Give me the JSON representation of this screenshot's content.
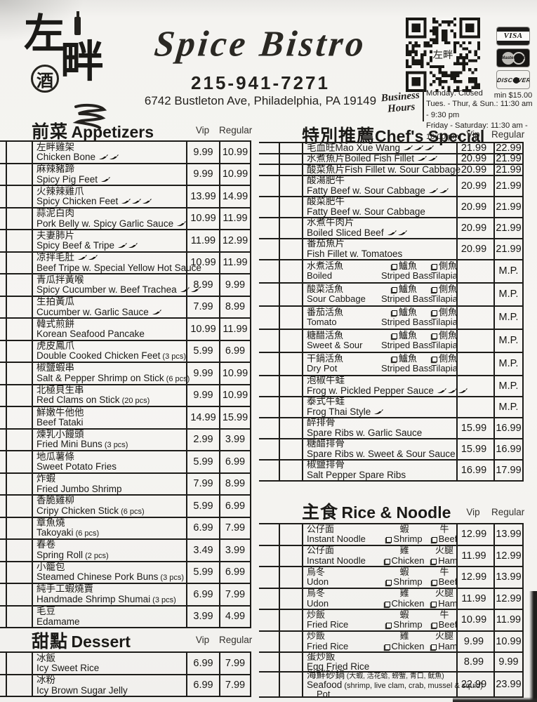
{
  "header": {
    "logo_chars": [
      "左",
      "畔"
    ],
    "logo_seal": "酒",
    "title": "Spice Bistro",
    "phone": "215-941-7271",
    "address": "6742 Bustleton Ave, Philadelphia, PA 19149",
    "qr_center_label": "左畔",
    "cards": [
      "VISA",
      "MasterCard",
      "DISCOVER"
    ],
    "card_minimum": "min $15.00",
    "hours_label": "Business Hours",
    "hours": [
      "Monday: Closed",
      "Tues. - Thur, & Sun.: 11:30 am - 9:30 pm",
      "Friday - Saturday: 11:30 am - 10:00 pm"
    ]
  },
  "columns": {
    "vip": "Vip",
    "regular": "Regular"
  },
  "colors": {
    "ink": "#1b1a17",
    "paper": "#f5f4f1",
    "border": "#1d1c19"
  },
  "sections": [
    {
      "id": "appetizers",
      "title_zh": "前菜",
      "title_en": "Appetizers",
      "items": [
        {
          "type": "d",
          "zh": "左畔雞架",
          "en": "Chicken Bone",
          "spice": 2,
          "vip": "9.99",
          "reg": "10.99"
        },
        {
          "type": "d",
          "zh": "麻辣豬蹄",
          "en": "Spicy Pig Feet",
          "spice": 1,
          "vip": "9.99",
          "reg": "10.99"
        },
        {
          "type": "d",
          "zh": "火辣辣雞爪",
          "en": "Spicy Chicken Feet",
          "spice": 3,
          "vip": "13.99",
          "reg": "14.99"
        },
        {
          "type": "d",
          "zh": "蒜泥白肉",
          "en": "Pork Belly w. Spicy Garlic Sauce",
          "spice": 1,
          "vip": "10.99",
          "reg": "11.99"
        },
        {
          "type": "d",
          "zh": "夫妻肺片",
          "en": "Spicy Beef & Tripe",
          "spice": 2,
          "vip": "11.99",
          "reg": "12.99"
        },
        {
          "type": "d",
          "zh": "凉拌毛肚",
          "spice_zh": 2,
          "en": "Beef Tripe w. Special Yellow Hot Sauce",
          "vip": "10.99",
          "reg": "11.99"
        },
        {
          "type": "d",
          "zh": "青瓜拌黃喉",
          "en": "Spicy Cucumber w. Beef Trachea",
          "spice": 2,
          "vip": "8.99",
          "reg": "9.99"
        },
        {
          "type": "d",
          "zh": "生拍黃瓜",
          "en": "Cucumber w. Garlic Sauce",
          "spice": 1,
          "vip": "7.99",
          "reg": "8.99"
        },
        {
          "type": "d",
          "zh": "韓式煎餅",
          "en": "Korean Seafood Pancake",
          "vip": "10.99",
          "reg": "11.99"
        },
        {
          "type": "d",
          "zh": "虎皮鳳爪",
          "en": "Double Cooked Chicken Feet",
          "note": "(3 pcs)",
          "vip": "5.99",
          "reg": "6.99"
        },
        {
          "type": "d",
          "zh": "椒鹽蝦串",
          "en": "Salt & Pepper Shrimp on Stick",
          "note": "(6 pcs)",
          "vip": "9.99",
          "reg": "10.99"
        },
        {
          "type": "d",
          "zh": "北極貝生串",
          "en": "Red Clams on Stick",
          "note": "(20 pcs)",
          "vip": "9.99",
          "reg": "10.99"
        },
        {
          "type": "d",
          "zh": "鮮嫩牛他他",
          "en": "Beef Tataki",
          "vip": "14.99",
          "reg": "15.99"
        },
        {
          "type": "d",
          "zh": "煉乳小饅頭",
          "en": "Fried Mini Buns",
          "note": "(3 pcs)",
          "vip": "2.99",
          "reg": "3.99"
        },
        {
          "type": "d",
          "zh": "地瓜薯條",
          "en": "Sweet Potato Fries",
          "vip": "5.99",
          "reg": "6.99"
        },
        {
          "type": "d",
          "zh": "炸蝦",
          "en": "Fried Jumbo Shrimp",
          "vip": "7.99",
          "reg": "8.99"
        },
        {
          "type": "d",
          "zh": "香脆雞柳",
          "en": "Cripy Chicken Stick",
          "note": "(6 pcs)",
          "vip": "5.99",
          "reg": "6.99"
        },
        {
          "type": "d",
          "zh": "章魚燒",
          "en": "Takoyaki",
          "note": "(6 pcs)",
          "vip": "6.99",
          "reg": "7.99"
        },
        {
          "type": "d",
          "zh": "春卷",
          "en": "Spring Roll",
          "note": "(2 pcs)",
          "vip": "3.49",
          "reg": "3.99"
        },
        {
          "type": "d",
          "zh": "小籠包",
          "en": "Steamed Chinese Pork Buns",
          "note": "(3 pcs)",
          "vip": "5.99",
          "reg": "6.99"
        },
        {
          "type": "d",
          "zh": "純手工蝦燒賣",
          "en": "Handmade Shrimp Shumai",
          "note": "(3 pcs)",
          "vip": "6.99",
          "reg": "7.99"
        },
        {
          "type": "d",
          "zh": "毛豆",
          "en": "Edamame",
          "vip": "3.99",
          "reg": "4.99"
        }
      ]
    },
    {
      "id": "dessert",
      "title_zh": "甜點",
      "title_en": "Dessert",
      "items": [
        {
          "type": "d",
          "zh": "冰飯",
          "en": "Icy Sweet Rice",
          "vip": "6.99",
          "reg": "7.99"
        },
        {
          "type": "d",
          "zh": "冰粉",
          "en": "Icy Brown Sugar Jelly",
          "vip": "6.99",
          "reg": "7.99"
        }
      ]
    },
    {
      "id": "chefs_special",
      "title_zh": "特別推薦",
      "title_en": "Chef's Special",
      "items": [
        {
          "type": "s",
          "zh": "毛血旺",
          "en": "Mao Xue Wang",
          "spice": 3,
          "vip": "21.99",
          "reg": "22.99"
        },
        {
          "type": "s",
          "zh": "水煮魚片",
          "en": "Boiled Fish Fillet",
          "spice": 2,
          "vip": "20.99",
          "reg": "21.99"
        },
        {
          "type": "s",
          "zh": "酸菜魚片",
          "en": "Fish Fillet w. Sour Cabbage",
          "vip": "20.99",
          "reg": "21.99"
        },
        {
          "type": "d",
          "zh": "酸湯肥牛",
          "en": "Fatty Beef w. Sour Cabbage",
          "spice": 2,
          "vip": "20.99",
          "reg": "21.99"
        },
        {
          "type": "d",
          "zh": "酸菜肥牛",
          "en": "Fatty Beef w. Sour Cabbage",
          "vip": "20.99",
          "reg": "21.99"
        },
        {
          "type": "d",
          "zh": "水煮牛肉片",
          "en": "Boiled Sliced Beef",
          "spice": 2,
          "vip": "20.99",
          "reg": "21.99"
        },
        {
          "type": "d",
          "zh": "番茄魚片",
          "en": "Fish Fillet w. Tomatoes",
          "vip": "20.99",
          "reg": "21.99"
        },
        {
          "type": "f",
          "zh": "水煮活魚",
          "en": "Boiled",
          "opt1": {
            "zh": "鱸魚",
            "en": "Striped Bass"
          },
          "opt2": {
            "zh": "側魚",
            "en": "Tilapia"
          },
          "vip": "",
          "reg": "M.P."
        },
        {
          "type": "f",
          "zh": "酸菜活魚",
          "en": "Sour Cabbage",
          "opt1": {
            "zh": "鱸魚",
            "en": "Striped Bass"
          },
          "opt2": {
            "zh": "側魚",
            "en": "Tilapia"
          },
          "vip": "",
          "reg": "M.P."
        },
        {
          "type": "f",
          "zh": "番茄活魚",
          "en": "Tomato",
          "opt1": {
            "zh": "鱸魚",
            "en": "Striped Bass"
          },
          "opt2": {
            "zh": "側魚",
            "en": "Tilapia"
          },
          "vip": "",
          "reg": "M.P."
        },
        {
          "type": "f",
          "zh": "糖醋活魚",
          "en": "Sweet & Sour",
          "opt1": {
            "zh": "鱸魚",
            "en": "Striped Bass"
          },
          "opt2": {
            "zh": "側魚",
            "en": "Tilapia"
          },
          "vip": "",
          "reg": "M.P."
        },
        {
          "type": "f",
          "zh": "干鍋活魚",
          "en": "Dry Pot",
          "opt1": {
            "zh": "鱸魚",
            "en": "Striped Bass"
          },
          "opt2": {
            "zh": "側魚",
            "en": "Tilapia"
          },
          "vip": "",
          "reg": "M.P."
        },
        {
          "type": "d",
          "zh": "泡椒牛蛙",
          "en": "Frog w. Pickled Pepper Sauce",
          "spice": 3,
          "vip": "",
          "reg": "M.P."
        },
        {
          "type": "d",
          "zh": "泰式牛蛙",
          "en": "Frog Thai Style",
          "spice": 1,
          "vip": "",
          "reg": "M.P."
        },
        {
          "type": "d",
          "zh": "醉排骨",
          "en": "Spare Ribs w. Garlic Sauce",
          "vip": "15.99",
          "reg": "16.99"
        },
        {
          "type": "d",
          "zh": "糖醋排骨",
          "en": "Spare Ribs w. Sweet & Sour Sauce",
          "vip": "15.99",
          "reg": "16.99"
        },
        {
          "type": "d",
          "zh": "椒鹽排骨",
          "en": "Salt Pepper Spare Ribs",
          "vip": "16.99",
          "reg": "17.99"
        }
      ]
    },
    {
      "id": "rice_noodle",
      "title_zh": "主食",
      "title_en": "Rice & Noodle",
      "items": [
        {
          "type": "n",
          "zh": "公仔面",
          "en": "Instant Noodle",
          "opt1": {
            "zh": "蝦",
            "en": "Shrimp"
          },
          "opt2": {
            "zh": "牛",
            "en": "Beef"
          },
          "vip": "12.99",
          "reg": "13.99"
        },
        {
          "type": "n",
          "zh": "公仔面",
          "en": "Instant Noodle",
          "opt1": {
            "zh": "雞",
            "en": "Chicken"
          },
          "opt2": {
            "zh": "火腿",
            "en": "Ham"
          },
          "vip": "11.99",
          "reg": "12.99"
        },
        {
          "type": "n",
          "zh": "烏冬",
          "en": "Udon",
          "opt1": {
            "zh": "蝦",
            "en": "Shrimp"
          },
          "opt2": {
            "zh": "牛",
            "en": "Beef"
          },
          "vip": "12.99",
          "reg": "13.99"
        },
        {
          "type": "n",
          "zh": "烏冬",
          "en": "Udon",
          "opt1": {
            "zh": "雞",
            "en": "Chicken"
          },
          "opt2": {
            "zh": "火腿",
            "en": "Ham"
          },
          "vip": "11.99",
          "reg": "12.99"
        },
        {
          "type": "n",
          "zh": "炒飯",
          "en": "Fried Rice",
          "opt1": {
            "zh": "蝦",
            "en": "Shrimp"
          },
          "opt2": {
            "zh": "牛",
            "en": "Beef"
          },
          "vip": "10.99",
          "reg": "11.99"
        },
        {
          "type": "n",
          "zh": "炒飯",
          "en": "Fried Rice",
          "opt1": {
            "zh": "雞",
            "en": "Chicken"
          },
          "opt2": {
            "zh": "火腿",
            "en": "Ham"
          },
          "vip": "9.99",
          "reg": "10.99"
        },
        {
          "type": "d",
          "zh": "蛋炒飯",
          "en": "Egg Fried Rice",
          "vip": "8.99",
          "reg": "9.99"
        },
        {
          "type": "sf",
          "zh": "海鮮砂鍋",
          "note_zh": "(大蝦, 活花蛤, 螃蟹, 青口, 鱿魚)",
          "en": "Seafood",
          "en2": "Pot",
          "note_en": "(shrimp, live clam, crab, mussel & squid)",
          "vip": "22.99",
          "reg": "23.99"
        }
      ]
    }
  ]
}
